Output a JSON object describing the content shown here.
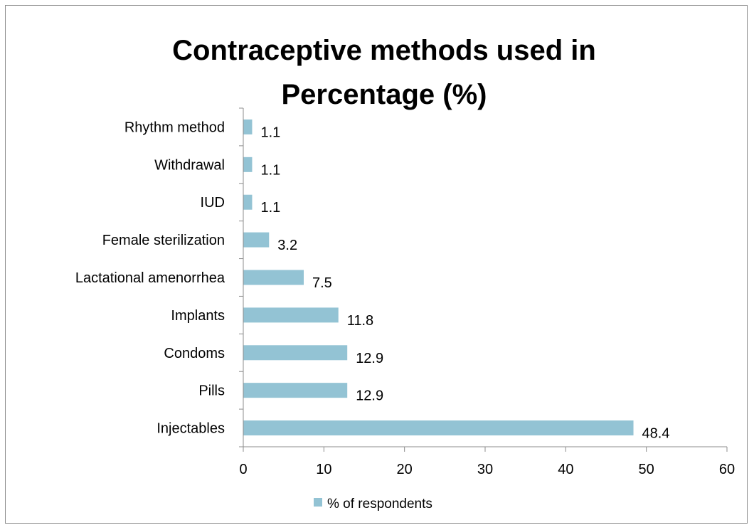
{
  "chart_data": {
    "type": "bar",
    "orientation": "horizontal",
    "title_lines": [
      "Contraceptive methods used in",
      "Percentage (%)"
    ],
    "categories": [
      "Rhythm method",
      "Withdrawal",
      "IUD",
      "Female sterilization",
      "Lactational amenorrhea",
      "Implants",
      "Condoms",
      "Pills",
      "Injectables"
    ],
    "series": [
      {
        "name": "% of respondents",
        "values": [
          1.1,
          1.1,
          1.1,
          3.2,
          7.5,
          11.8,
          12.9,
          12.9,
          48.4
        ],
        "value_labels": [
          "1.1",
          "1.1",
          "1.1",
          "3.2",
          "7.5",
          "11.8",
          "12.9",
          "12.9",
          "48.4"
        ],
        "color": "#93c3d4"
      }
    ],
    "xlim": [
      0,
      60
    ],
    "xticks": [
      "0",
      "10",
      "20",
      "30",
      "40",
      "50",
      "60"
    ],
    "xtick_values": [
      0,
      10,
      20,
      30,
      40,
      50,
      60
    ],
    "grid": false,
    "legend": "bottom",
    "axis_color": "#8c8c8c"
  }
}
